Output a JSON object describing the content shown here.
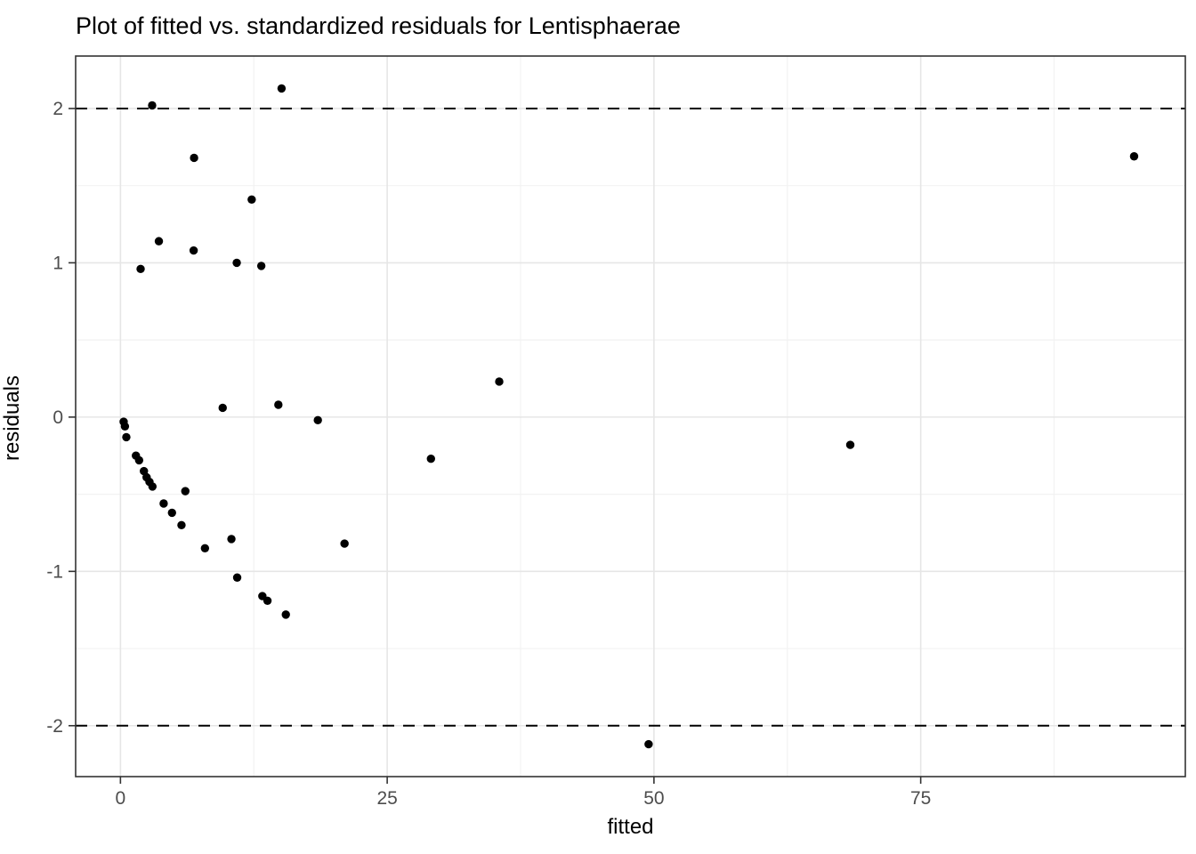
{
  "chart_data": {
    "type": "scatter",
    "title": "Plot of fitted vs. standardized residuals for Lentisphaerae",
    "xlabel": "fitted",
    "ylabel": "residuals",
    "xlim": [
      -4.2,
      99.8
    ],
    "ylim": [
      -2.33,
      2.34
    ],
    "x_ticks": [
      0,
      25,
      50,
      75
    ],
    "y_ticks": [
      -2,
      -1,
      0,
      1,
      2
    ],
    "x_minor_ticks": [
      12.5,
      37.5,
      62.5,
      87.5
    ],
    "y_minor_ticks": [
      -1.5,
      -0.5,
      0.5,
      1.5
    ],
    "grid": true,
    "legend": false,
    "point_shape": "filled-circle",
    "reference_lines": {
      "y_values": [
        2,
        -2
      ],
      "style": "dashed"
    },
    "points": [
      [
        2.97,
        2.02
      ],
      [
        15.1,
        2.13
      ],
      [
        6.9,
        1.68
      ],
      [
        12.3,
        1.41
      ],
      [
        3.6,
        1.14
      ],
      [
        6.86,
        1.08
      ],
      [
        10.9,
        1.0
      ],
      [
        13.2,
        0.98
      ],
      [
        1.89,
        0.96
      ],
      [
        95.0,
        1.69
      ],
      [
        9.58,
        0.06
      ],
      [
        14.8,
        0.08
      ],
      [
        18.5,
        -0.02
      ],
      [
        35.5,
        0.23
      ],
      [
        29.1,
        -0.27
      ],
      [
        68.4,
        -0.18
      ],
      [
        0.3,
        -0.03
      ],
      [
        0.42,
        -0.06
      ],
      [
        0.55,
        -0.13
      ],
      [
        1.45,
        -0.25
      ],
      [
        1.75,
        -0.28
      ],
      [
        2.2,
        -0.35
      ],
      [
        2.45,
        -0.39
      ],
      [
        2.72,
        -0.42
      ],
      [
        3.0,
        -0.45
      ],
      [
        6.08,
        -0.48
      ],
      [
        4.05,
        -0.56
      ],
      [
        4.83,
        -0.62
      ],
      [
        5.72,
        -0.7
      ],
      [
        10.4,
        -0.79
      ],
      [
        7.92,
        -0.85
      ],
      [
        21.0,
        -0.82
      ],
      [
        10.94,
        -1.04
      ],
      [
        13.3,
        -1.16
      ],
      [
        13.78,
        -1.19
      ],
      [
        15.5,
        -1.28
      ],
      [
        49.5,
        -2.12
      ]
    ]
  },
  "colors": {
    "background": "#ffffff",
    "panel_background": "#ffffff",
    "panel_border": "#333333",
    "grid_major": "#e6e6e6",
    "grid_minor": "#f2f2f2",
    "point": "#000000",
    "reference_line": "#000000",
    "tick_mark": "#333333",
    "tick_label": "#4d4d4d",
    "title": "#000000",
    "axis_title": "#000000"
  }
}
